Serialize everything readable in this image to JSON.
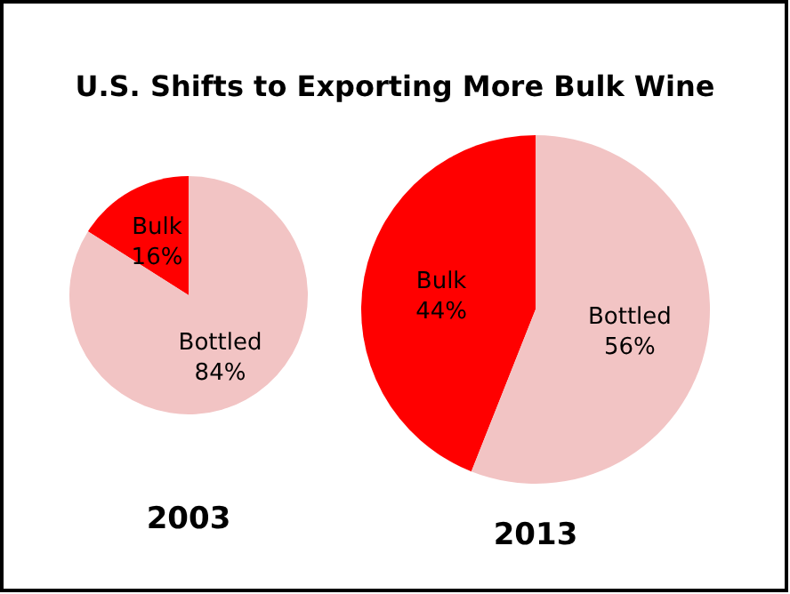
{
  "chart_data": [
    {
      "type": "pie",
      "title": "U.S. Shifts to Exporting More Bulk Wine",
      "xlabel": "2003",
      "categories": [
        "Bulk",
        "Bottled"
      ],
      "values": [
        16,
        84
      ],
      "colors": [
        "#ff0000",
        "#f2c4c4"
      ],
      "value_labels": [
        "16%",
        "84%"
      ]
    },
    {
      "type": "pie",
      "xlabel": "2013",
      "categories": [
        "Bulk",
        "Bottled"
      ],
      "values": [
        44,
        56
      ],
      "colors": [
        "#ff0000",
        "#f2c4c4"
      ],
      "value_labels": [
        "44%",
        "56%"
      ]
    }
  ]
}
